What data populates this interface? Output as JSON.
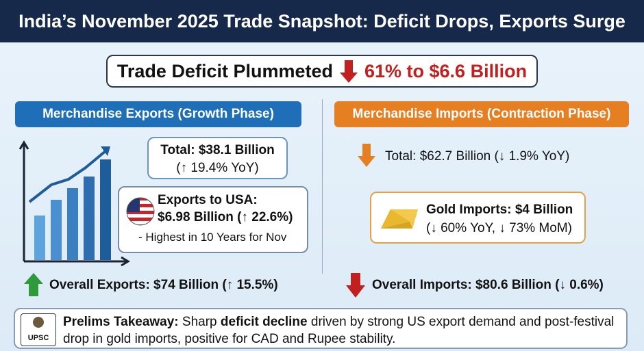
{
  "header": {
    "title": "India’s November 2025 Trade Snapshot: Deficit Drops, Exports Surge"
  },
  "headline": {
    "lead": "Trade Deficit Plummeted",
    "value": "61% to $6.6 Billion"
  },
  "exports": {
    "heading": "Merchandise Exports (Growth Phase)",
    "total": "Total: $38.1 Billion",
    "total_change": "(↑ 19.4% YoY)",
    "usa_label": "Exports to USA:",
    "usa_value": "$6.98 Billion (↑ 22.6%)",
    "usa_note": "- Highest in 10 Years for Nov",
    "overall": "Overall Exports: $74 Billion (↑ 15.5%)"
  },
  "imports": {
    "heading": "Merchandise Imports (Contraction Phase)",
    "total": "Total: $62.7 Billion (↓ 1.9% YoY)",
    "gold": "Gold Imports: $4 Billion",
    "gold_change": "(↓ 60% YoY, ↓ 73% MoM)",
    "overall": "Overall Imports: $80.6 Billion (↓ 0.6%)"
  },
  "takeaway": {
    "badge": "UPSC",
    "label": "Prelims Takeaway:",
    "text_start": "Sharp",
    "emphasis": "deficit decline",
    "text_end": "driven by strong US export demand and post-festival drop in gold imports, positive for CAD and Rupee stability."
  }
}
